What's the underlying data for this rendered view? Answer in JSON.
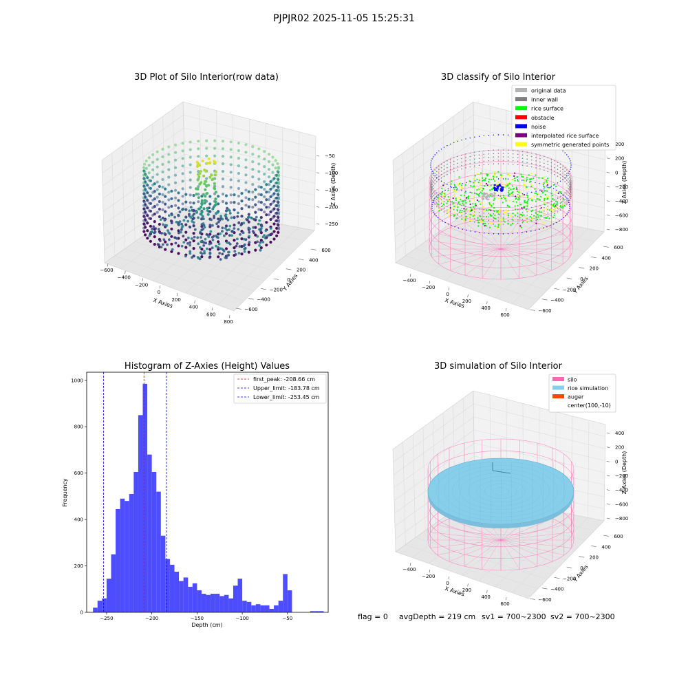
{
  "figure": {
    "suptitle": "PJPJR02 2025-11-05 15:25:31",
    "status": {
      "flag": "flag = 0",
      "avg_depth": "avgDepth = 219 cm",
      "sv1": "sv1 = 700~2300",
      "sv2": "sv2 = 700~2300"
    }
  },
  "colors": {
    "original": "#b3b3b3",
    "inner_wall": "#808080",
    "rice_surface": "#00ff00",
    "obstacle": "#ff0000",
    "noise": "#0000ff",
    "interpolated": "#800080",
    "symmetric": "#ffff00",
    "silo": "#ff69b4",
    "rice_sim": "#87ceeb",
    "auger": "#ff4500",
    "hist_bar": "#4d4dff"
  },
  "panels": {
    "raw3d": {
      "title": "3D Plot of Silo Interior(row data)",
      "xlabel": "X Axies",
      "ylabel": "Y Axies",
      "zlabel": "Z Axies (Depth)",
      "xticks": [
        "−600",
        "−400",
        "−200",
        "0",
        "200",
        "400",
        "600",
        "800"
      ],
      "yticks": [
        "−600",
        "−400",
        "−200",
        "0",
        "200",
        "400",
        "600"
      ],
      "zticks": [
        "−50",
        "−100",
        "−150",
        "−200",
        "−250"
      ]
    },
    "classify3d": {
      "title": "3D classify of Silo Interior",
      "xlabel": "X Axies",
      "ylabel": "Y Axies",
      "zlabel": "Z Axies (Depth)",
      "xticks": [
        "−400",
        "−200",
        "0",
        "200",
        "400",
        "600"
      ],
      "yticks": [
        "−600",
        "−400",
        "−200",
        "0",
        "200",
        "400",
        "600"
      ],
      "zticks": [
        "200",
        "200",
        "0",
        "−200",
        "−400",
        "−600",
        "−800"
      ],
      "legend": [
        {
          "label": "original data",
          "color_key": "original"
        },
        {
          "label": "inner wall",
          "color_key": "inner_wall"
        },
        {
          "label": "rice surface",
          "color_key": "rice_surface"
        },
        {
          "label": "obstacle",
          "color_key": "obstacle"
        },
        {
          "label": "noise",
          "color_key": "noise"
        },
        {
          "label": "interpolated rice surface",
          "color_key": "interpolated"
        },
        {
          "label": "symmetric generated points",
          "color_key": "symmetric"
        }
      ]
    },
    "simulation3d": {
      "title": "3D simulation of Silo Interior",
      "xlabel": "X Axies",
      "ylabel": "Y Axies",
      "zlabel": "Z Axies (Depth)",
      "xticks": [
        "−400",
        "−200",
        "0",
        "200",
        "400",
        "600"
      ],
      "yticks": [
        "−600",
        "−400",
        "−200",
        "0",
        "200",
        "400",
        "600"
      ],
      "zticks": [
        "400",
        "200",
        "0",
        "−200",
        "−400",
        "−600",
        "−800"
      ],
      "legend": [
        {
          "label": "silo",
          "color_key": "silo"
        },
        {
          "label": "rice simulation",
          "color_key": "rice_sim"
        },
        {
          "label": "auger",
          "color_key": "auger"
        },
        {
          "label": "center(100,-10)",
          "color_key": ""
        }
      ]
    }
  },
  "chart_data": {
    "type": "bar",
    "title": "Histogram of Z-Axies (Height) Values",
    "xlabel": "Depth (cm)",
    "ylabel": "Frequency",
    "xlim": [
      -272,
      -5
    ],
    "ylim": [
      0,
      1035
    ],
    "bin_width": 5,
    "xticks": [
      -250,
      -200,
      -150,
      -100,
      -50
    ],
    "xtick_labels": [
      "−250",
      "−200",
      "−150",
      "−100",
      "−50"
    ],
    "yticks": [
      0,
      200,
      400,
      600,
      800,
      1000
    ],
    "bin_starts": [
      -265,
      -260,
      -255,
      -250,
      -245,
      -240,
      -235,
      -230,
      -225,
      -220,
      -215,
      -210,
      -205,
      -200,
      -195,
      -190,
      -185,
      -180,
      -175,
      -170,
      -165,
      -160,
      -155,
      -150,
      -145,
      -140,
      -135,
      -130,
      -125,
      -120,
      -115,
      -110,
      -105,
      -100,
      -95,
      -90,
      -85,
      -80,
      -75,
      -70,
      -65,
      -60,
      -55,
      -50,
      -45,
      -40,
      -35,
      -30,
      -25,
      -20,
      -15
    ],
    "values": [
      20,
      50,
      60,
      145,
      250,
      445,
      490,
      480,
      510,
      605,
      850,
      985,
      680,
      605,
      520,
      330,
      230,
      205,
      175,
      135,
      150,
      110,
      125,
      95,
      80,
      75,
      80,
      80,
      70,
      75,
      60,
      115,
      145,
      50,
      45,
      30,
      35,
      30,
      30,
      15,
      30,
      50,
      165,
      95,
      0,
      0,
      0,
      0,
      5,
      5,
      5
    ],
    "lines": [
      {
        "label": "first_peak: -208.66 cm",
        "x": -208.66,
        "color": "#ff0000",
        "style": "dashed"
      },
      {
        "label": "Upper_limit: -183.78 cm",
        "x": -183.78,
        "color": "#0000ff",
        "style": "dashed"
      },
      {
        "label": "Lower_limit: -253.45 cm",
        "x": -253.45,
        "color": "#0000ff",
        "style": "dashed"
      }
    ]
  }
}
